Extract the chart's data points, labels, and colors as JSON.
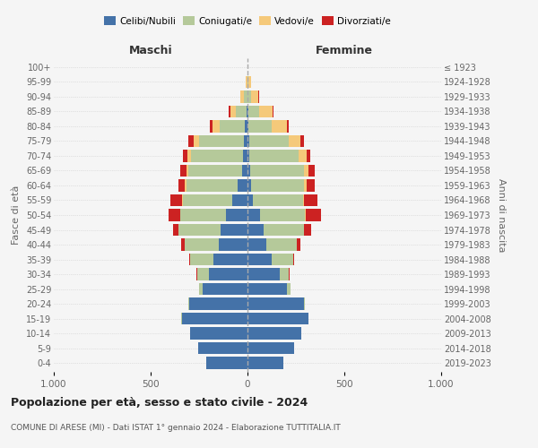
{
  "age_groups": [
    "0-4",
    "5-9",
    "10-14",
    "15-19",
    "20-24",
    "25-29",
    "30-34",
    "35-39",
    "40-44",
    "45-49",
    "50-54",
    "55-59",
    "60-64",
    "65-69",
    "70-74",
    "75-79",
    "80-84",
    "85-89",
    "90-94",
    "95-99",
    "100+"
  ],
  "birth_years": [
    "2019-2023",
    "2014-2018",
    "2009-2013",
    "2004-2008",
    "1999-2003",
    "1994-1998",
    "1989-1993",
    "1984-1988",
    "1979-1983",
    "1974-1978",
    "1969-1973",
    "1964-1968",
    "1959-1963",
    "1954-1958",
    "1949-1953",
    "1944-1948",
    "1939-1943",
    "1934-1938",
    "1929-1933",
    "1924-1928",
    "≤ 1923"
  ],
  "colors": {
    "celibi": "#4472a8",
    "coniugati": "#b5c99a",
    "vedovi": "#f5c97a",
    "divorziati": "#cc2222"
  },
  "males": {
    "celibi": [
      215,
      255,
      295,
      340,
      300,
      230,
      200,
      175,
      150,
      140,
      110,
      80,
      50,
      30,
      25,
      20,
      15,
      5,
      2,
      0,
      0
    ],
    "coniugati": [
      0,
      0,
      0,
      2,
      5,
      20,
      60,
      120,
      175,
      215,
      235,
      255,
      265,
      275,
      265,
      230,
      130,
      55,
      15,
      2,
      0
    ],
    "vedovi": [
      0,
      0,
      0,
      0,
      0,
      0,
      0,
      0,
      1,
      2,
      3,
      5,
      8,
      10,
      20,
      30,
      35,
      30,
      20,
      5,
      0
    ],
    "divorziati": [
      0,
      0,
      0,
      0,
      0,
      1,
      3,
      8,
      15,
      25,
      60,
      60,
      35,
      30,
      25,
      25,
      15,
      5,
      2,
      0,
      0
    ]
  },
  "females": {
    "celibi": [
      185,
      240,
      280,
      315,
      290,
      205,
      165,
      125,
      95,
      85,
      65,
      30,
      20,
      15,
      10,
      10,
      5,
      3,
      2,
      0,
      0
    ],
    "coniugati": [
      0,
      0,
      0,
      2,
      5,
      15,
      50,
      110,
      160,
      205,
      230,
      255,
      270,
      275,
      255,
      205,
      120,
      55,
      15,
      5,
      0
    ],
    "vedovi": [
      0,
      0,
      0,
      0,
      0,
      0,
      0,
      1,
      1,
      3,
      5,
      8,
      15,
      25,
      40,
      60,
      80,
      70,
      40,
      15,
      0
    ],
    "divorziati": [
      0,
      0,
      0,
      0,
      0,
      1,
      3,
      5,
      15,
      35,
      80,
      70,
      40,
      30,
      20,
      15,
      10,
      5,
      2,
      0,
      0
    ]
  },
  "title": "Popolazione per età, sesso e stato civile - 2024",
  "subtitle": "COMUNE DI ARESE (MI) - Dati ISTAT 1° gennaio 2024 - Elaborazione TUTTITALIA.IT",
  "xlabel_left": "Maschi",
  "xlabel_right": "Femmine",
  "ylabel_left": "Fasce di età",
  "ylabel_right": "Anni di nascita",
  "xlim": 1000,
  "legend_labels": [
    "Celibi/Nubili",
    "Coniugati/e",
    "Vedovi/e",
    "Divorziati/e"
  ],
  "bg_color": "#f5f5f5",
  "bar_height": 0.82
}
